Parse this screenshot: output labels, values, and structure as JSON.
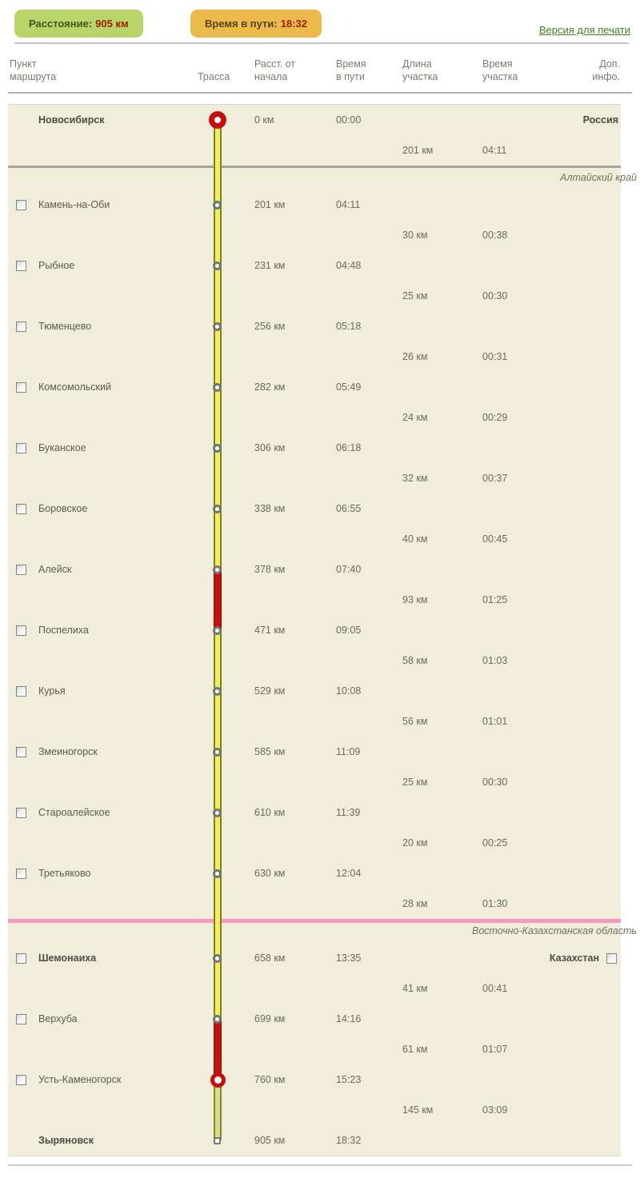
{
  "summary": {
    "distance_label": "Расстояние:",
    "distance_value": "905 км",
    "duration_label": "Время в пути:",
    "duration_value": "18:32",
    "print_link": "Версия для печати"
  },
  "colors": {
    "badge_green": "#b9d469",
    "badge_orange": "#ecb94d",
    "badge_value_red": "#9e2000",
    "link_green": "#3f8024",
    "table_bg": "#f0edda",
    "road_yellow": "#f2ef5e",
    "road_border": "#7e7e28",
    "road_red": "#c31111",
    "road_minor": "#dcd98c",
    "divider_gray": "#a3a39b",
    "divider_pink": "#f598c3"
  },
  "table_headers": {
    "point": "Пункт\nмаршрута",
    "road": "Трасса",
    "dist_from_start": "Расст. от\nначала",
    "time_en_route": "Время\nв пути",
    "segment_length": "Длина\nучастка",
    "segment_time": "Время\nучастка",
    "extra_info": "Доп.\nинфо."
  },
  "icons": {
    "start_marker": "red-donut-start-marker",
    "stop_marker": "gray-ring-stop-marker",
    "city_marker": "red-ring-city-marker",
    "end_marker": "gray-square-end-marker"
  },
  "rows": [
    {
      "type": "waypoint",
      "name": "Новосибирск",
      "bold": true,
      "checkbox": false,
      "marker": "start",
      "road_top": "none",
      "road_bottom": "main",
      "dist": "0 км",
      "time": "00:00",
      "country": "Россия",
      "country_checkbox": false
    },
    {
      "type": "segment",
      "road": "main",
      "length": "201 км",
      "duration": "04:11"
    },
    {
      "type": "divider",
      "style": "gray",
      "road": "main",
      "label": "Алтайский край"
    },
    {
      "type": "waypoint",
      "name": "Камень-на-Оби",
      "bold": false,
      "checkbox": true,
      "marker": "small",
      "road_top": "main",
      "road_bottom": "main",
      "dist": "201 км",
      "time": "04:11"
    },
    {
      "type": "segment",
      "road": "main",
      "length": "30 км",
      "duration": "00:38"
    },
    {
      "type": "waypoint",
      "name": "Рыбное",
      "bold": false,
      "checkbox": true,
      "marker": "small",
      "road_top": "main",
      "road_bottom": "main",
      "dist": "231 км",
      "time": "04:48"
    },
    {
      "type": "segment",
      "road": "main",
      "length": "25 км",
      "duration": "00:30"
    },
    {
      "type": "waypoint",
      "name": "Тюменцево",
      "bold": false,
      "checkbox": true,
      "marker": "small",
      "road_top": "main",
      "road_bottom": "main",
      "dist": "256 км",
      "time": "05:18"
    },
    {
      "type": "segment",
      "road": "main",
      "length": "26 км",
      "duration": "00:31"
    },
    {
      "type": "waypoint",
      "name": "Комсомольский",
      "bold": false,
      "checkbox": true,
      "marker": "small",
      "road_top": "main",
      "road_bottom": "main",
      "dist": "282 км",
      "time": "05:49"
    },
    {
      "type": "segment",
      "road": "main",
      "length": "24 км",
      "duration": "00:29"
    },
    {
      "type": "waypoint",
      "name": "Буканское",
      "bold": false,
      "checkbox": true,
      "marker": "small",
      "road_top": "main",
      "road_bottom": "main",
      "dist": "306 км",
      "time": "06:18"
    },
    {
      "type": "segment",
      "road": "main",
      "length": "32 км",
      "duration": "00:37"
    },
    {
      "type": "waypoint",
      "name": "Боровское",
      "bold": false,
      "checkbox": true,
      "marker": "small",
      "road_top": "main",
      "road_bottom": "main",
      "dist": "338 км",
      "time": "06:55"
    },
    {
      "type": "segment",
      "road": "main",
      "length": "40 км",
      "duration": "00:45"
    },
    {
      "type": "waypoint",
      "name": "Алейск",
      "bold": false,
      "checkbox": true,
      "marker": "small",
      "road_top": "main",
      "road_bottom": "red",
      "dist": "378 км",
      "time": "07:40"
    },
    {
      "type": "segment",
      "road": "red",
      "length": "93 км",
      "duration": "01:25"
    },
    {
      "type": "waypoint",
      "name": "Поспелиха",
      "bold": false,
      "checkbox": true,
      "marker": "small",
      "road_top": "red",
      "road_bottom": "main",
      "dist": "471 км",
      "time": "09:05"
    },
    {
      "type": "segment",
      "road": "main",
      "length": "58 км",
      "duration": "01:03"
    },
    {
      "type": "waypoint",
      "name": "Курья",
      "bold": false,
      "checkbox": true,
      "marker": "small",
      "road_top": "main",
      "road_bottom": "main",
      "dist": "529 км",
      "time": "10:08"
    },
    {
      "type": "segment",
      "road": "main",
      "length": "56 км",
      "duration": "01:01"
    },
    {
      "type": "waypoint",
      "name": "Змеиногорск",
      "bold": false,
      "checkbox": true,
      "marker": "small",
      "road_top": "main",
      "road_bottom": "main",
      "dist": "585 км",
      "time": "11:09"
    },
    {
      "type": "segment",
      "road": "main",
      "length": "25 км",
      "duration": "00:30"
    },
    {
      "type": "waypoint",
      "name": "Староалейское",
      "bold": false,
      "checkbox": true,
      "marker": "small",
      "road_top": "main",
      "road_bottom": "main",
      "dist": "610 км",
      "time": "11:39"
    },
    {
      "type": "segment",
      "road": "main",
      "length": "20 км",
      "duration": "00:25"
    },
    {
      "type": "waypoint",
      "name": "Третьяково",
      "bold": false,
      "checkbox": true,
      "marker": "small",
      "road_top": "main",
      "road_bottom": "main",
      "dist": "630 км",
      "time": "12:04"
    },
    {
      "type": "segment",
      "road": "main",
      "length": "28 км",
      "duration": "01:30"
    },
    {
      "type": "divider",
      "style": "pink",
      "road": "main",
      "label": "Восточно-Казахстанская область"
    },
    {
      "type": "waypoint",
      "name": "Шемонаиха",
      "bold": true,
      "checkbox": true,
      "marker": "small",
      "road_top": "main",
      "road_bottom": "main",
      "dist": "658 км",
      "time": "13:35",
      "country": "Казахстан",
      "country_checkbox": true
    },
    {
      "type": "segment",
      "road": "main",
      "length": "41 км",
      "duration": "00:41"
    },
    {
      "type": "waypoint",
      "name": "Верхуба",
      "bold": false,
      "checkbox": true,
      "marker": "small",
      "road_top": "main",
      "road_bottom": "red",
      "dist": "699 км",
      "time": "14:16"
    },
    {
      "type": "segment",
      "road": "red",
      "length": "61 км",
      "duration": "01:07"
    },
    {
      "type": "waypoint",
      "name": "Усть-Каменогорск",
      "bold": false,
      "checkbox": true,
      "marker": "ringred",
      "road_top": "red",
      "road_bottom": "minor",
      "dist": "760 км",
      "time": "15:23"
    },
    {
      "type": "segment",
      "road": "minor",
      "length": "145 км",
      "duration": "03:09"
    },
    {
      "type": "waypoint",
      "name": "Зыряновск",
      "bold": true,
      "checkbox": false,
      "marker": "end",
      "road_top": "minor",
      "road_bottom": "none",
      "dist": "905 км",
      "time": "18:32"
    }
  ]
}
